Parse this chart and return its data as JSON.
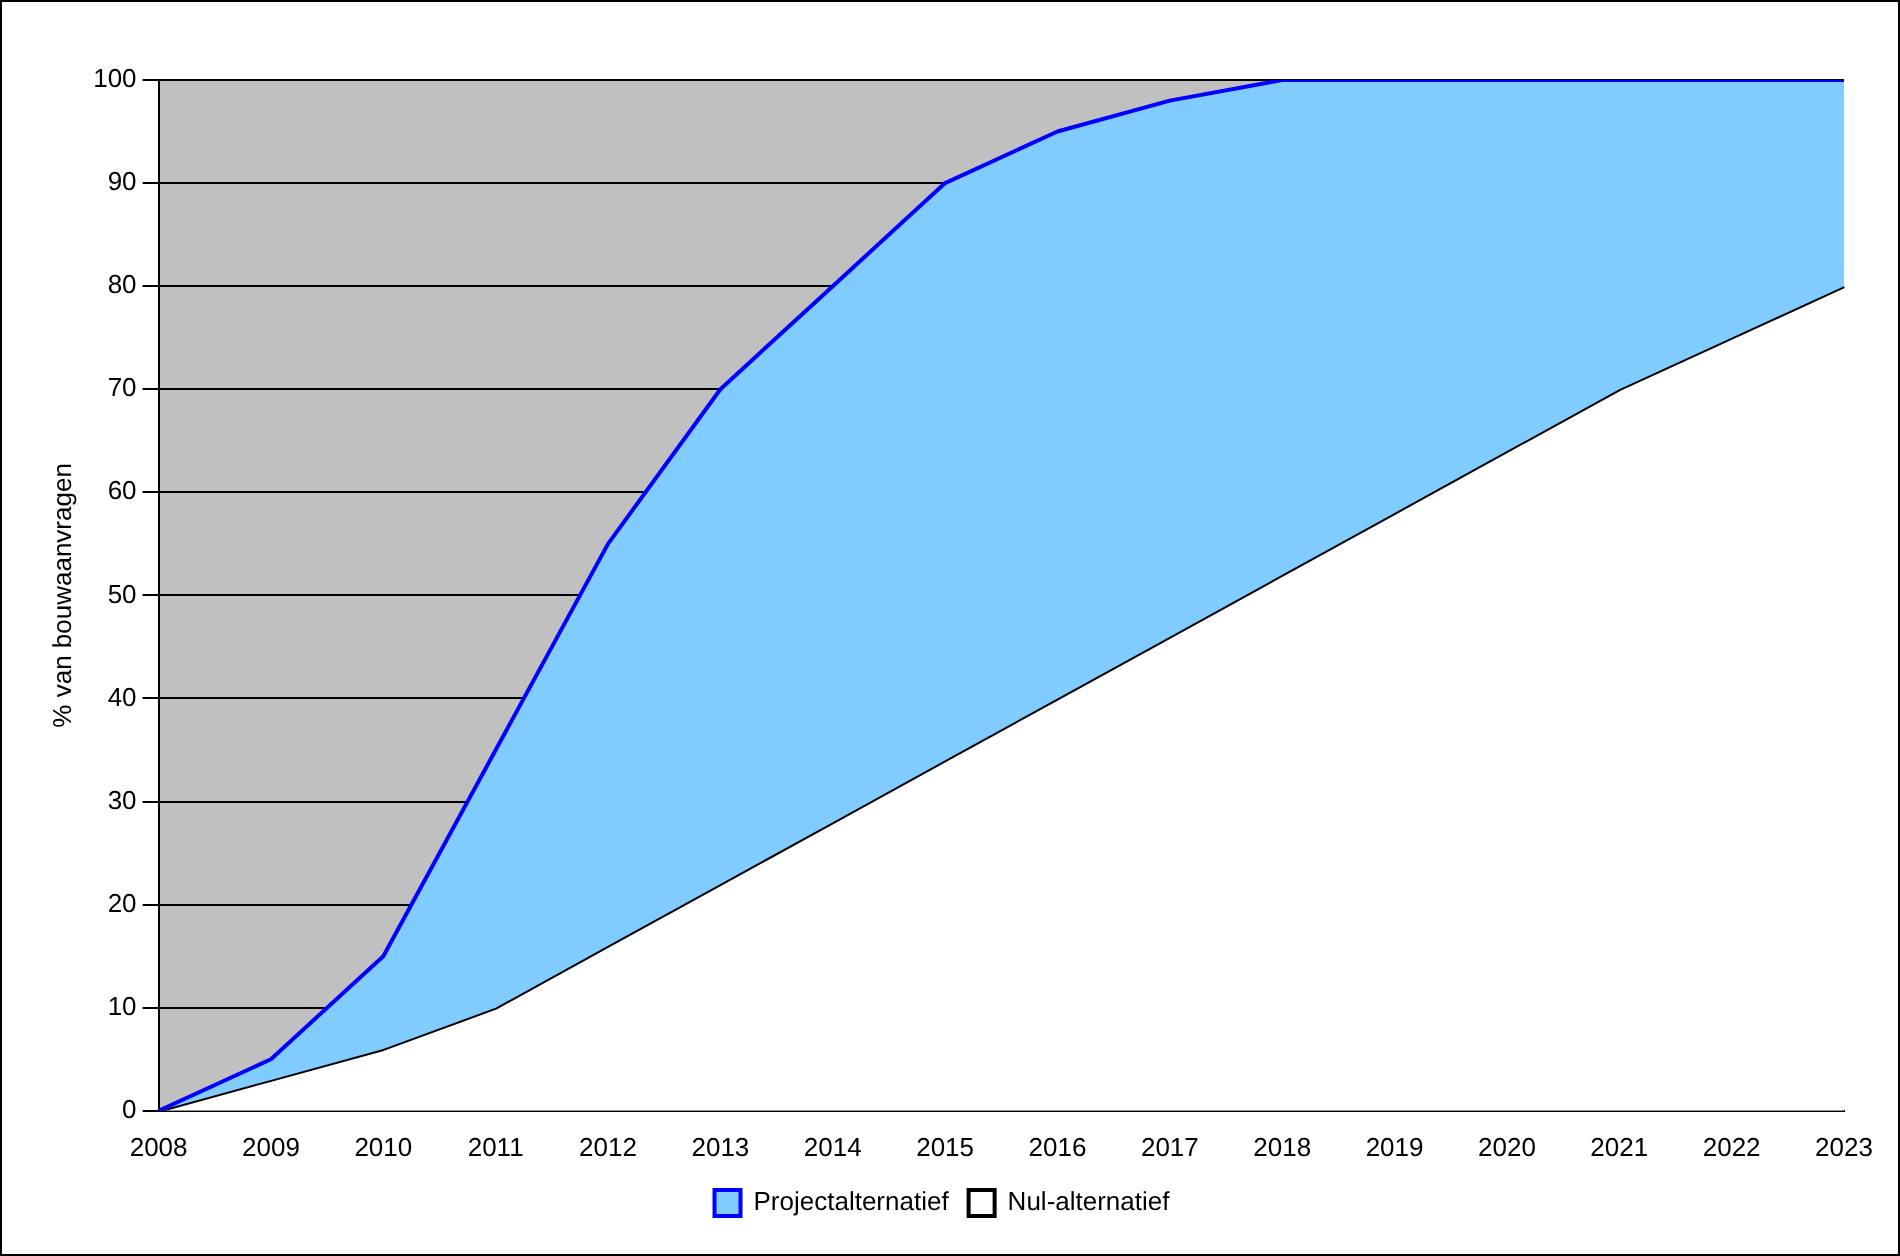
{
  "chart_data": {
    "type": "area",
    "ylabel": "% van bouwaanvragen",
    "categories": [
      "2008",
      "2009",
      "2010",
      "2011",
      "2012",
      "2013",
      "2014",
      "2015",
      "2016",
      "2017",
      "2018",
      "2019",
      "2020",
      "2021",
      "2022",
      "2023"
    ],
    "series": [
      {
        "name": "Projectalternatief",
        "color": "#80ccff",
        "values": [
          0,
          5,
          15,
          35,
          55,
          70,
          80,
          90,
          95,
          98,
          100,
          100,
          100,
          100,
          100,
          100
        ]
      },
      {
        "name": "Nul-alternatief",
        "color": "#ffffff",
        "values": [
          0,
          3,
          6,
          10,
          16,
          22,
          28,
          34,
          40,
          46,
          52,
          58,
          64,
          70,
          75,
          80
        ]
      }
    ],
    "ylim": [
      0,
      100
    ],
    "yticks": [
      0,
      10,
      20,
      30,
      40,
      50,
      60,
      70,
      80,
      90,
      100
    ],
    "grid": "y",
    "legend": "bottom"
  }
}
